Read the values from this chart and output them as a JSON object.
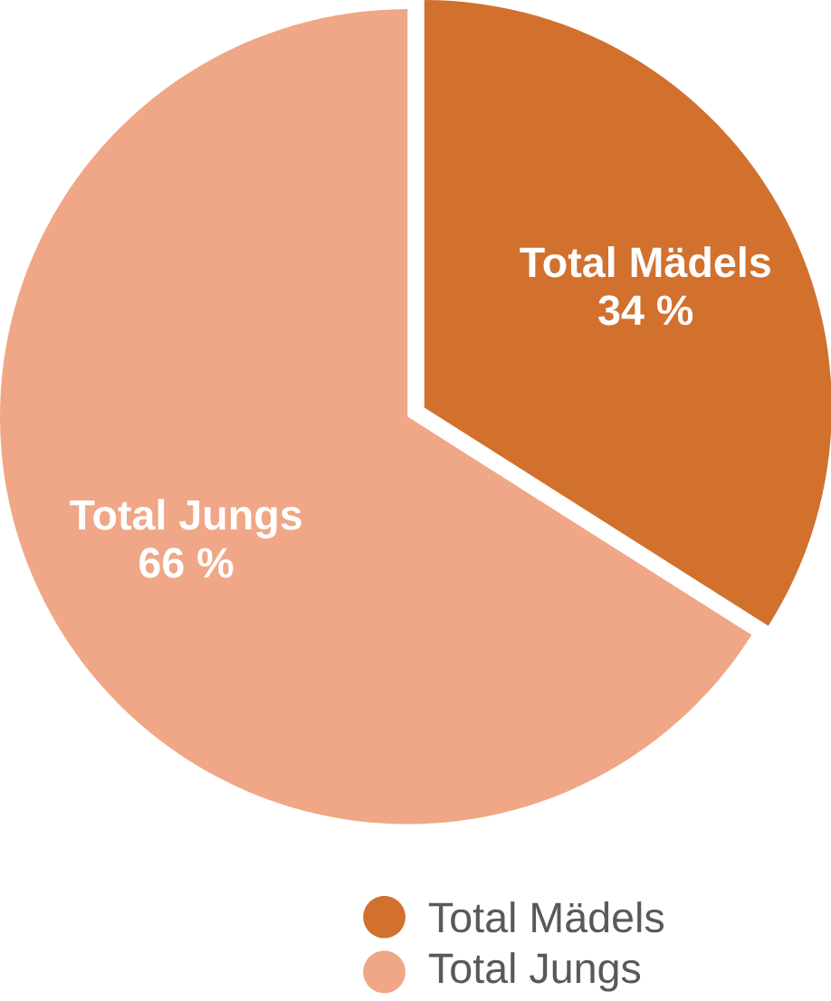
{
  "chart_data": {
    "type": "pie",
    "categories": [
      "Total Mädels",
      "Total Jungs"
    ],
    "values": [
      34,
      66
    ],
    "value_labels": [
      "34 %",
      "66 %"
    ],
    "colors": [
      "#d2702e",
      "#f0a787"
    ],
    "legend": "bottom"
  }
}
